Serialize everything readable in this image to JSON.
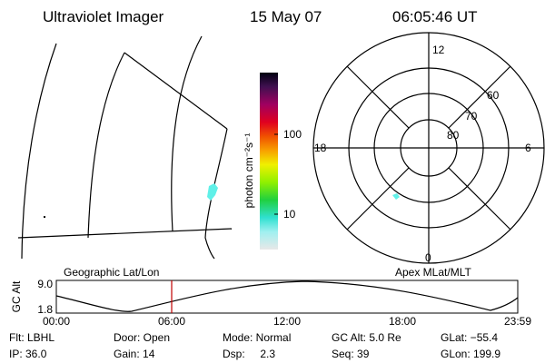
{
  "header": {
    "title": "Ultraviolet Imager",
    "date": "15 May 07",
    "time": "06:05:46 UT"
  },
  "colorbar": {
    "label": "photon cm⁻²s⁻¹",
    "ticks": [
      "100",
      "10"
    ]
  },
  "polar": {
    "labels": {
      "top": "12",
      "left": "18",
      "right": "6",
      "bottom": "0"
    },
    "rings": [
      "60",
      "70",
      "80"
    ]
  },
  "altitude_plot": {
    "left_label": "Geographic Lat/Lon",
    "right_label": "Apex MLat/MLT",
    "y_title": "GC Alt",
    "y_labels": [
      "9.0",
      "1.8"
    ],
    "x_labels": [
      "00:00",
      "06:00",
      "12:00",
      "18:00",
      "23:59"
    ]
  },
  "info": {
    "rows": [
      [
        "Flt: LBHL",
        "Door: Open",
        "Mode: Normal",
        "GC Alt: 5.0 Re",
        "GLat: −55.4"
      ],
      [
        "IP: 36.0",
        "Gain: 14",
        "Dsp:     2.3",
        "Seq: 39",
        "GLon: 199.9"
      ]
    ]
  }
}
